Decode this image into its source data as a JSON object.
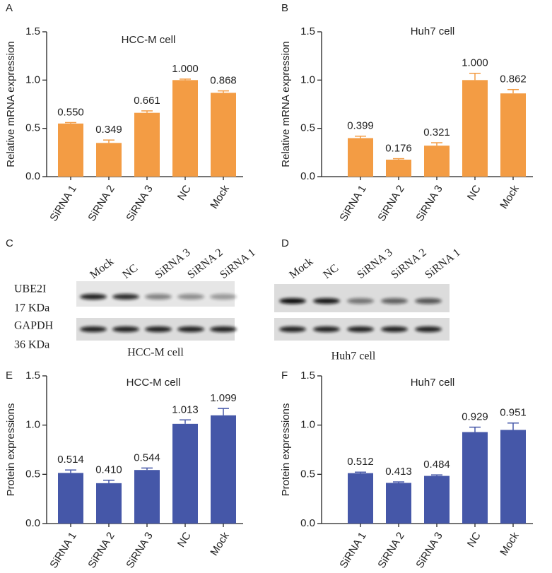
{
  "chart_data": [
    {
      "type": "bar",
      "panel": "A",
      "title": "HCC-M cell",
      "ylabel": "Relative mRNA expression",
      "categories": [
        "SiRNA 1",
        "SiRNA 2",
        "SiRNA 3",
        "NC",
        "Mock"
      ],
      "values": [
        0.55,
        0.349,
        0.661,
        1.0,
        0.868
      ],
      "value_labels": [
        "0.550",
        "0.349",
        "0.661",
        "1.000",
        "0.868"
      ],
      "errors": [
        0.01,
        0.03,
        0.02,
        0.01,
        0.02
      ],
      "color": "#f39c44",
      "ylim": [
        0,
        1.5
      ],
      "yticks": [
        {
          "value": 0,
          "label": "0.0"
        },
        0.5,
        {
          "value": 1,
          "label": "1.0"
        },
        1.5
      ]
    },
    {
      "type": "bar",
      "panel": "B",
      "title": "Huh7 cell",
      "ylabel": "Relative mRNA expression",
      "categories": [
        "SiRNA 1",
        "SiRNA 2",
        "SiRNA 3",
        "NC",
        "Mock"
      ],
      "values": [
        0.399,
        0.176,
        0.321,
        1.0,
        0.862
      ],
      "value_labels": [
        "0.399",
        "0.176",
        "0.321",
        "1.000",
        "0.862"
      ],
      "errors": [
        0.02,
        0.01,
        0.03,
        0.07,
        0.04
      ],
      "color": "#f39c44",
      "ylim": [
        0,
        1.5
      ],
      "yticks": [
        {
          "value": 0,
          "label": "0.0"
        },
        0.5,
        {
          "value": 1,
          "label": "1.0"
        },
        1.5
      ]
    },
    {
      "type": "bar",
      "panel": "E",
      "title": "HCC-M cell",
      "ylabel": "Protein expressions",
      "categories": [
        "SiRNA 1",
        "SiRNA 2",
        "SiRNA 3",
        "NC",
        "Mock"
      ],
      "values": [
        0.514,
        0.41,
        0.544,
        1.013,
        1.099
      ],
      "value_labels": [
        "0.514",
        "0.410",
        "0.544",
        "1.013",
        "1.099"
      ],
      "errors": [
        0.03,
        0.03,
        0.02,
        0.04,
        0.07
      ],
      "color": "#4557a8",
      "ylim": [
        0,
        1.5
      ],
      "yticks": [
        {
          "value": 0,
          "label": "0.0"
        },
        0.5,
        {
          "value": 1,
          "label": "1.0"
        },
        1.5
      ]
    },
    {
      "type": "bar",
      "panel": "F",
      "title": "Huh7 cell",
      "ylabel": "Protein expressions",
      "categories": [
        "SiRNA 1",
        "SiRNA 2",
        "SiRNA 3",
        "NC",
        "Mock"
      ],
      "values": [
        0.512,
        0.413,
        0.484,
        0.929,
        0.951
      ],
      "value_labels": [
        "0.512",
        "0.413",
        "0.484",
        "0.929",
        "0.951"
      ],
      "errors": [
        0.01,
        0.01,
        0.01,
        0.05,
        0.07
      ],
      "color": "#4557a8",
      "ylim": [
        0,
        1.5
      ],
      "yticks": [
        {
          "value": 0,
          "label": "0.0"
        },
        0.5,
        {
          "value": 1,
          "label": "1.0"
        },
        1.5
      ]
    }
  ],
  "blots": [
    {
      "panel": "C",
      "lanes": [
        "Mock",
        "NC",
        "SiRNA 3",
        "SiRNA 2",
        "SiRNA 1"
      ],
      "rows": [
        {
          "protein": "UBE2I",
          "size": "17 KDa"
        },
        {
          "protein": "GAPDH",
          "size": "36 KDa"
        }
      ],
      "caption": "HCC-M cell"
    },
    {
      "panel": "D",
      "lanes": [
        "Mock",
        "NC",
        "SiRNA 3",
        "SiRNA 2",
        "SiRNA 1"
      ],
      "caption": "Huh7 cell"
    }
  ]
}
